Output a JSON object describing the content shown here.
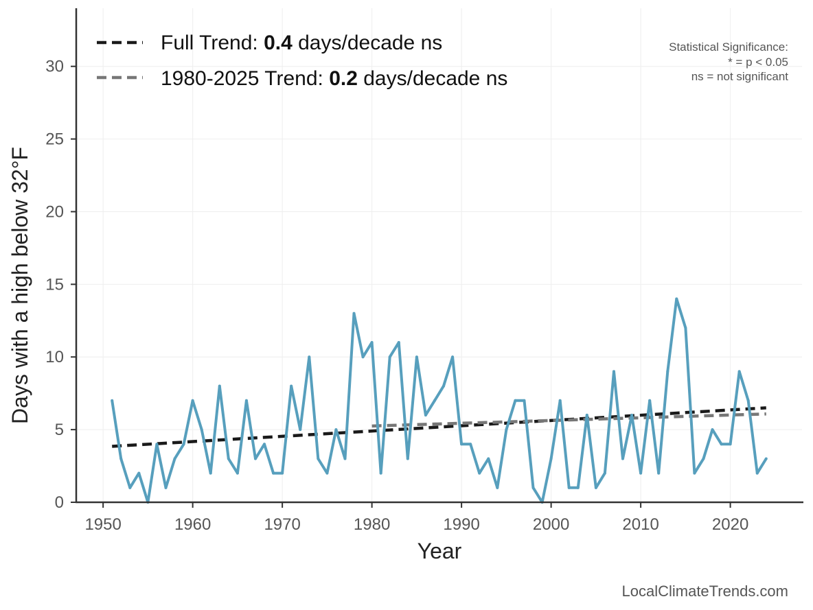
{
  "chart_data": {
    "type": "line",
    "xlabel": "Year",
    "ylabel": "Days with a high below 32°F",
    "xlim": [
      1947,
      2028
    ],
    "ylim": [
      0,
      34
    ],
    "x_ticks": [
      1950,
      1960,
      1970,
      1980,
      1990,
      2000,
      2010,
      2020
    ],
    "y_ticks": [
      0,
      5,
      10,
      15,
      20,
      25,
      30
    ],
    "grid": true,
    "series": [
      {
        "color": "#579fbd",
        "x": [
          1951,
          1952,
          1953,
          1954,
          1955,
          1956,
          1957,
          1958,
          1959,
          1960,
          1961,
          1962,
          1963,
          1964,
          1965,
          1966,
          1967,
          1968,
          1969,
          1970,
          1971,
          1972,
          1973,
          1974,
          1975,
          1976,
          1977,
          1978,
          1979,
          1980,
          1981,
          1982,
          1983,
          1984,
          1985,
          1986,
          1987,
          1988,
          1989,
          1990,
          1991,
          1992,
          1993,
          1994,
          1995,
          1996,
          1997,
          1998,
          1999,
          2000,
          2001,
          2002,
          2003,
          2004,
          2005,
          2006,
          2007,
          2008,
          2009,
          2010,
          2011,
          2012,
          2013,
          2014,
          2015,
          2016,
          2017,
          2018,
          2019,
          2020,
          2021,
          2022,
          2023,
          2024
        ],
        "values": [
          7,
          3,
          1,
          2,
          0,
          4,
          1,
          3,
          4,
          7,
          5,
          2,
          8,
          3,
          2,
          7,
          3,
          4,
          2,
          2,
          8,
          5,
          10,
          3,
          2,
          5,
          3,
          13,
          10,
          11,
          2,
          10,
          11,
          3,
          10,
          6,
          7,
          8,
          10,
          4,
          4,
          2,
          3,
          1,
          5,
          7,
          7,
          1,
          0,
          3,
          7,
          1,
          1,
          6,
          1,
          2,
          9,
          3,
          6,
          2,
          7,
          2,
          9,
          14,
          12,
          2,
          3,
          5,
          4,
          4,
          9,
          7,
          2,
          3
        ]
      }
    ],
    "trend_lines": [
      {
        "x": [
          1951,
          2024
        ],
        "values": [
          3.85,
          6.5
        ],
        "color": "#1a1a1a",
        "dash": "dashed"
      },
      {
        "x": [
          1980,
          2024
        ],
        "values": [
          5.25,
          6.08
        ],
        "color": "#777777",
        "dash": "dashed"
      }
    ],
    "legend": {
      "position": "top-left",
      "entries": [
        {
          "prefix": "Full Trend: ",
          "value": "0.4",
          "suffix": " days/decade ns",
          "color": "#1a1a1a"
        },
        {
          "prefix": "1980-2025 Trend: ",
          "value": "0.2",
          "suffix": " days/decade ns",
          "color": "#777777"
        }
      ]
    },
    "annotation": {
      "lines": [
        "Statistical Significance:",
        "* = p < 0.05",
        "ns = not significant"
      ]
    },
    "credit": "LocalClimateTrends.com"
  }
}
